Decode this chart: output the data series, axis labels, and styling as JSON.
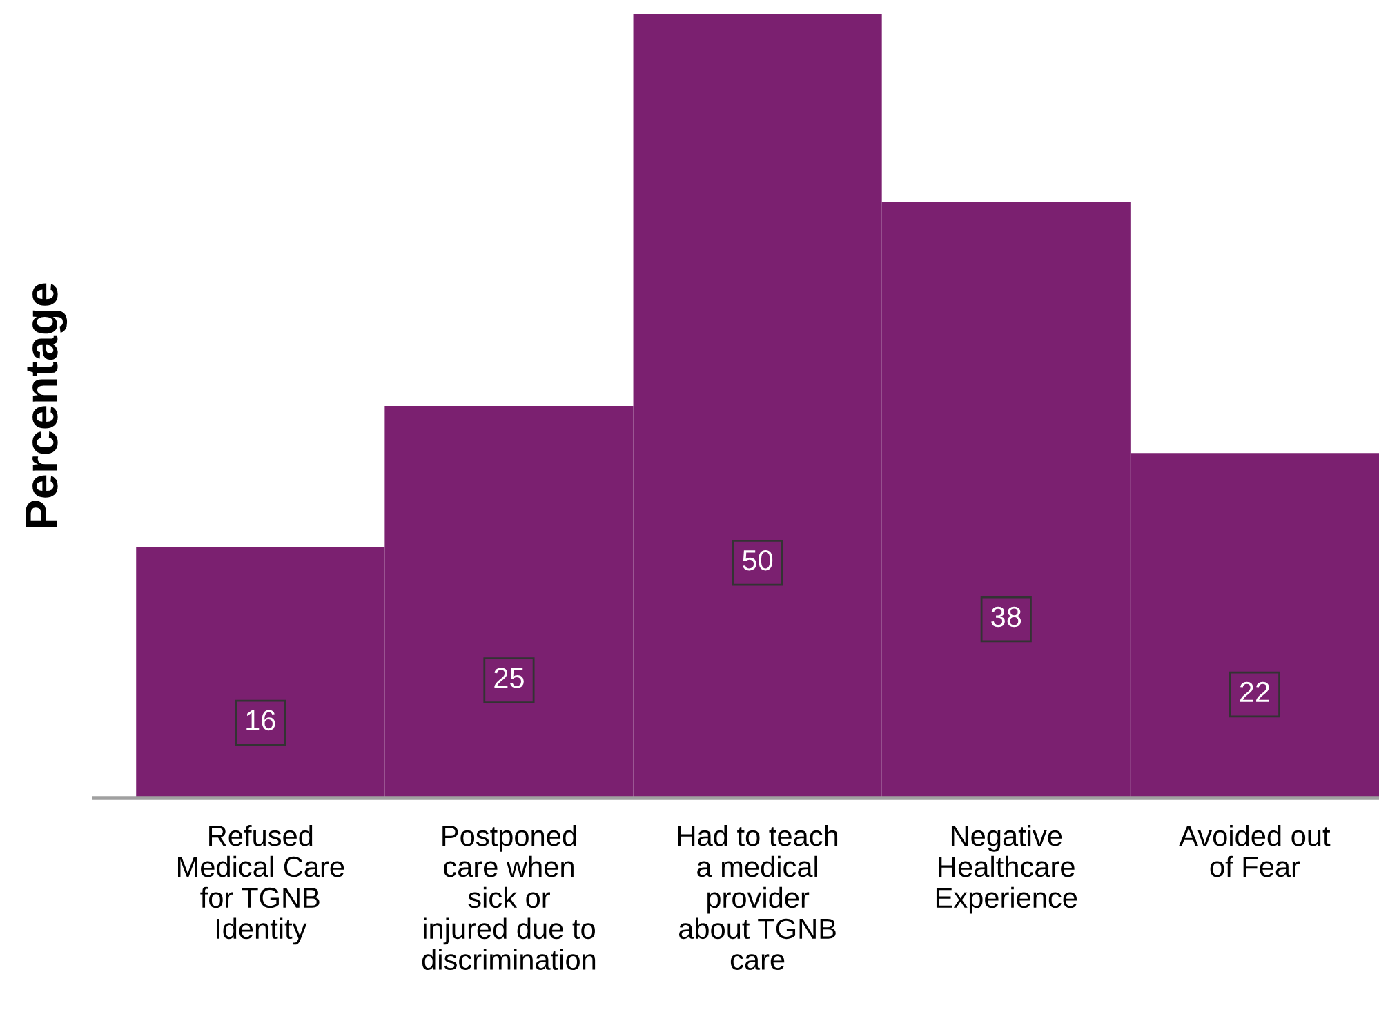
{
  "chart_data": {
    "type": "bar",
    "ylabel": "Percentage",
    "categories": [
      "Refused\nMedical Care\nfor TGNB\nIdentity",
      "Postponed\ncare when\nsick or\ninjured due to\ndiscrimination",
      "Had to teach\na medical\nprovider\nabout TGNB\ncare",
      "Negative\nHealthcare\nExperience",
      "Avoided out\nof Fear"
    ],
    "values": [
      16,
      25,
      50,
      38,
      22
    ],
    "color": "#7b2070",
    "data_labels": true,
    "tick_labels": "x",
    "grid": false,
    "legend": false
  }
}
